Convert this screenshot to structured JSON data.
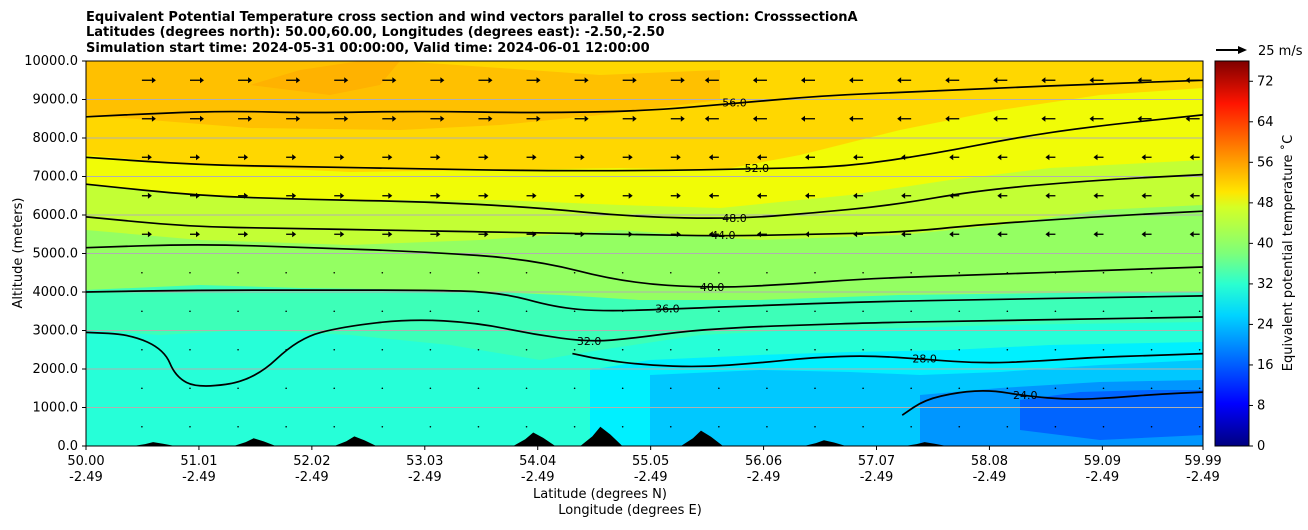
{
  "chart_data": {
    "type": "contourf",
    "title_lines": [
      "Equivalent Potential Temperature cross section and wind vectors parallel to cross section: CrosssectionA",
      "Latitudes (degrees north): 50.00,60.00, Longitudes (degrees east): -2.50,-2.50",
      "Simulation start time: 2024-05-31 00:00:00, Valid time: 2024-06-01 12:00:00"
    ],
    "ylabel": "Altitude (meters)",
    "xlabel_lines": [
      "Latitude (degrees N)",
      "Longitude (degrees E)"
    ],
    "x_range": [
      50.0,
      59.99
    ],
    "y_range": [
      0,
      10000
    ],
    "x_ticks": [
      {
        "lat": "50.00",
        "lon": "-2.49"
      },
      {
        "lat": "51.01",
        "lon": "-2.49"
      },
      {
        "lat": "52.02",
        "lon": "-2.49"
      },
      {
        "lat": "53.03",
        "lon": "-2.49"
      },
      {
        "lat": "54.04",
        "lon": "-2.49"
      },
      {
        "lat": "55.05",
        "lon": "-2.49"
      },
      {
        "lat": "56.06",
        "lon": "-2.49"
      },
      {
        "lat": "57.07",
        "lon": "-2.49"
      },
      {
        "lat": "58.08",
        "lon": "-2.49"
      },
      {
        "lat": "59.09",
        "lon": "-2.49"
      },
      {
        "lat": "59.99",
        "lon": "-2.49"
      }
    ],
    "y_ticks": [
      "0.0",
      "1000.0",
      "2000.0",
      "3000.0",
      "4000.0",
      "5000.0",
      "6000.0",
      "7000.0",
      "8000.0",
      "9000.0",
      "10000.0"
    ],
    "grid": "horizontal",
    "quiver_key": "25 m/s",
    "colorbar": {
      "label": "Equivalent potential temperature $^\\circ$C",
      "label_text": "Equivalent potential temperature ˚C",
      "min": 0,
      "max": 76,
      "ticks": [
        "0",
        "8",
        "16",
        "24",
        "32",
        "40",
        "48",
        "56",
        "64",
        "72"
      ],
      "colormap": "jet"
    },
    "contours": [
      {
        "level": 24.0,
        "label": "24.0",
        "points": [
          [
            57.3,
            800
          ],
          [
            57.5,
            1200
          ],
          [
            57.8,
            1400
          ],
          [
            58.1,
            1450
          ],
          [
            58.4,
            1300
          ],
          [
            58.8,
            1200
          ],
          [
            59.2,
            1250
          ],
          [
            59.6,
            1350
          ],
          [
            59.99,
            1400
          ]
        ]
      },
      {
        "level": 28.0,
        "label": "28.0",
        "points": [
          [
            54.35,
            2400
          ],
          [
            54.6,
            2250
          ],
          [
            55.0,
            2100
          ],
          [
            55.5,
            2050
          ],
          [
            56.0,
            2150
          ],
          [
            56.5,
            2300
          ],
          [
            57.0,
            2350
          ],
          [
            57.5,
            2250
          ],
          [
            58.0,
            2150
          ],
          [
            58.5,
            2200
          ],
          [
            59.0,
            2300
          ],
          [
            59.5,
            2350
          ],
          [
            59.99,
            2400
          ]
        ]
      },
      {
        "level": 32.0,
        "label": "32.0",
        "points": [
          [
            50.0,
            2950
          ],
          [
            50.4,
            2900
          ],
          [
            50.7,
            2500
          ],
          [
            50.8,
            1800
          ],
          [
            51.0,
            1500
          ],
          [
            51.5,
            1700
          ],
          [
            51.9,
            2800
          ],
          [
            52.3,
            3100
          ],
          [
            52.9,
            3300
          ],
          [
            53.5,
            3200
          ],
          [
            54.0,
            2900
          ],
          [
            54.5,
            2700
          ],
          [
            54.9,
            2800
          ],
          [
            55.4,
            3000
          ],
          [
            56.0,
            3100
          ],
          [
            56.5,
            3150
          ],
          [
            57.0,
            3200
          ],
          [
            58.0,
            3250
          ],
          [
            59.0,
            3300
          ],
          [
            59.99,
            3350
          ]
        ]
      },
      {
        "level": 36.0,
        "label": "36.0",
        "points": [
          [
            50.0,
            4000
          ],
          [
            51.0,
            4050
          ],
          [
            52.0,
            4050
          ],
          [
            53.0,
            4050
          ],
          [
            53.7,
            4000
          ],
          [
            54.2,
            3600
          ],
          [
            54.6,
            3500
          ],
          [
            55.2,
            3550
          ],
          [
            56.0,
            3650
          ],
          [
            57.0,
            3750
          ],
          [
            58.0,
            3800
          ],
          [
            59.0,
            3850
          ],
          [
            59.99,
            3900
          ]
        ]
      },
      {
        "level": 40.0,
        "label": "40.0",
        "points": [
          [
            50.0,
            5150
          ],
          [
            51.0,
            5250
          ],
          [
            52.0,
            5150
          ],
          [
            53.0,
            5050
          ],
          [
            54.0,
            4850
          ],
          [
            54.8,
            4250
          ],
          [
            55.6,
            4100
          ],
          [
            56.3,
            4200
          ],
          [
            57.0,
            4350
          ],
          [
            58.0,
            4450
          ],
          [
            59.0,
            4550
          ],
          [
            59.99,
            4650
          ]
        ]
      },
      {
        "level": 44.0,
        "label": "44.0",
        "points": [
          [
            50.0,
            5950
          ],
          [
            50.9,
            5700
          ],
          [
            51.8,
            5650
          ],
          [
            52.8,
            5600
          ],
          [
            53.8,
            5550
          ],
          [
            54.8,
            5500
          ],
          [
            55.7,
            5450
          ],
          [
            56.5,
            5500
          ],
          [
            57.3,
            5550
          ],
          [
            58.0,
            5750
          ],
          [
            59.0,
            5950
          ],
          [
            59.99,
            6100
          ]
        ]
      },
      {
        "level": 48.0,
        "label": "48.0",
        "points": [
          [
            50.0,
            6800
          ],
          [
            51.0,
            6500
          ],
          [
            52.0,
            6400
          ],
          [
            53.0,
            6350
          ],
          [
            54.0,
            6200
          ],
          [
            54.9,
            5950
          ],
          [
            55.8,
            5900
          ],
          [
            56.5,
            6050
          ],
          [
            57.2,
            6250
          ],
          [
            58.0,
            6650
          ],
          [
            59.0,
            6900
          ],
          [
            59.99,
            7050
          ]
        ]
      },
      {
        "level": 52.0,
        "label": "52.0",
        "points": [
          [
            50.0,
            7500
          ],
          [
            51.0,
            7300
          ],
          [
            52.0,
            7250
          ],
          [
            53.0,
            7200
          ],
          [
            54.0,
            7150
          ],
          [
            55.0,
            7150
          ],
          [
            56.0,
            7200
          ],
          [
            56.8,
            7250
          ],
          [
            57.6,
            7600
          ],
          [
            58.3,
            8000
          ],
          [
            59.0,
            8300
          ],
          [
            59.99,
            8600
          ]
        ]
      },
      {
        "level": 56.0,
        "label": "56.0",
        "points": [
          [
            50.0,
            8550
          ],
          [
            50.7,
            8650
          ],
          [
            51.3,
            8700
          ],
          [
            52.0,
            8650
          ],
          [
            53.0,
            8700
          ],
          [
            54.0,
            8650
          ],
          [
            55.0,
            8700
          ],
          [
            55.8,
            8900
          ],
          [
            56.6,
            9100
          ],
          [
            57.4,
            9200
          ],
          [
            58.2,
            9300
          ],
          [
            59.0,
            9400
          ],
          [
            59.99,
            9500
          ]
        ]
      }
    ],
    "terrain_heights_m": [
      {
        "lat": 50.6,
        "height": 100
      },
      {
        "lat": 51.5,
        "height": 200
      },
      {
        "lat": 52.4,
        "height": 250
      },
      {
        "lat": 54.0,
        "height": 350
      },
      {
        "lat": 54.6,
        "height": 500
      },
      {
        "lat": 55.5,
        "height": 400
      },
      {
        "lat": 56.6,
        "height": 150
      },
      {
        "lat": 57.5,
        "height": 100
      }
    ]
  }
}
